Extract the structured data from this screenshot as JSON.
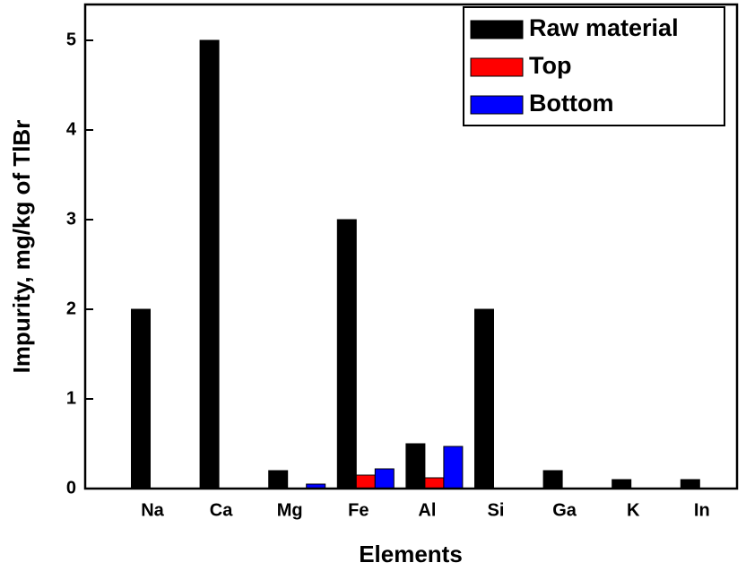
{
  "chart_data": {
    "type": "bar",
    "y_label": "Impurity, mg/kg of TlBr",
    "x_label": "Elements",
    "categories": [
      "Na",
      "Ca",
      "Mg",
      "Fe",
      "Al",
      "Si",
      "Ga",
      "K",
      "In"
    ],
    "series": [
      {
        "name": "Raw material",
        "color": "#000000",
        "values": [
          2,
          5,
          0.2,
          3,
          0.5,
          2,
          0.2,
          0.1,
          0.1
        ]
      },
      {
        "name": "Top",
        "color": "#ff0000",
        "values": [
          0,
          0,
          0,
          0.15,
          0.12,
          0,
          0,
          0,
          0
        ]
      },
      {
        "name": "Bottom",
        "color": "#0000ff",
        "values": [
          0,
          0,
          0.05,
          0.22,
          0.47,
          0,
          0,
          0,
          0
        ]
      }
    ],
    "ylim": [
      0,
      5.4
    ],
    "yticks": [
      0,
      1,
      2,
      3,
      4,
      5
    ],
    "legend": "upper right"
  }
}
